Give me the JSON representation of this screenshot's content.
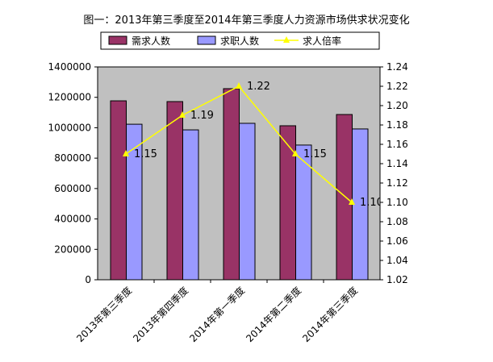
{
  "chart_data": {
    "type": "bar",
    "title": "图一：2013年第三季度至2014年第三季度人力资源市场供求状况变化",
    "categories": [
      "2013年第三季度",
      "2013年第四季度",
      "2014年第一季度",
      "2014年第二季度",
      "2014年第三季度"
    ],
    "series": [
      {
        "name": "需求人数",
        "type": "bar",
        "axis": "left",
        "color": "#993366",
        "values": [
          1177000,
          1172000,
          1257000,
          1013000,
          1087000
        ]
      },
      {
        "name": "求职人数",
        "type": "bar",
        "axis": "left",
        "color": "#9999FF",
        "values": [
          1023000,
          986000,
          1029000,
          886000,
          992000
        ]
      },
      {
        "name": "求人倍率",
        "type": "line",
        "axis": "right",
        "color": "#FFFF00",
        "values": [
          1.15,
          1.19,
          1.22,
          1.15,
          1.1
        ],
        "labels": [
          "1.15",
          "1.19",
          "1.22",
          "1.15",
          "1.10"
        ]
      }
    ],
    "y_left": {
      "range": [
        0,
        1400000
      ],
      "ticks": [
        "0",
        "200000",
        "400000",
        "600000",
        "800000",
        "1000000",
        "1200000",
        "1400000"
      ]
    },
    "y_right": {
      "range": [
        1.02,
        1.24
      ],
      "ticks": [
        "1.02",
        "1.04",
        "1.06",
        "1.08",
        "1.10",
        "1.12",
        "1.14",
        "1.16",
        "1.18",
        "1.20",
        "1.22",
        "1.24"
      ]
    },
    "plot_background": "#C0C0C0",
    "grid": false,
    "legend": "top"
  }
}
